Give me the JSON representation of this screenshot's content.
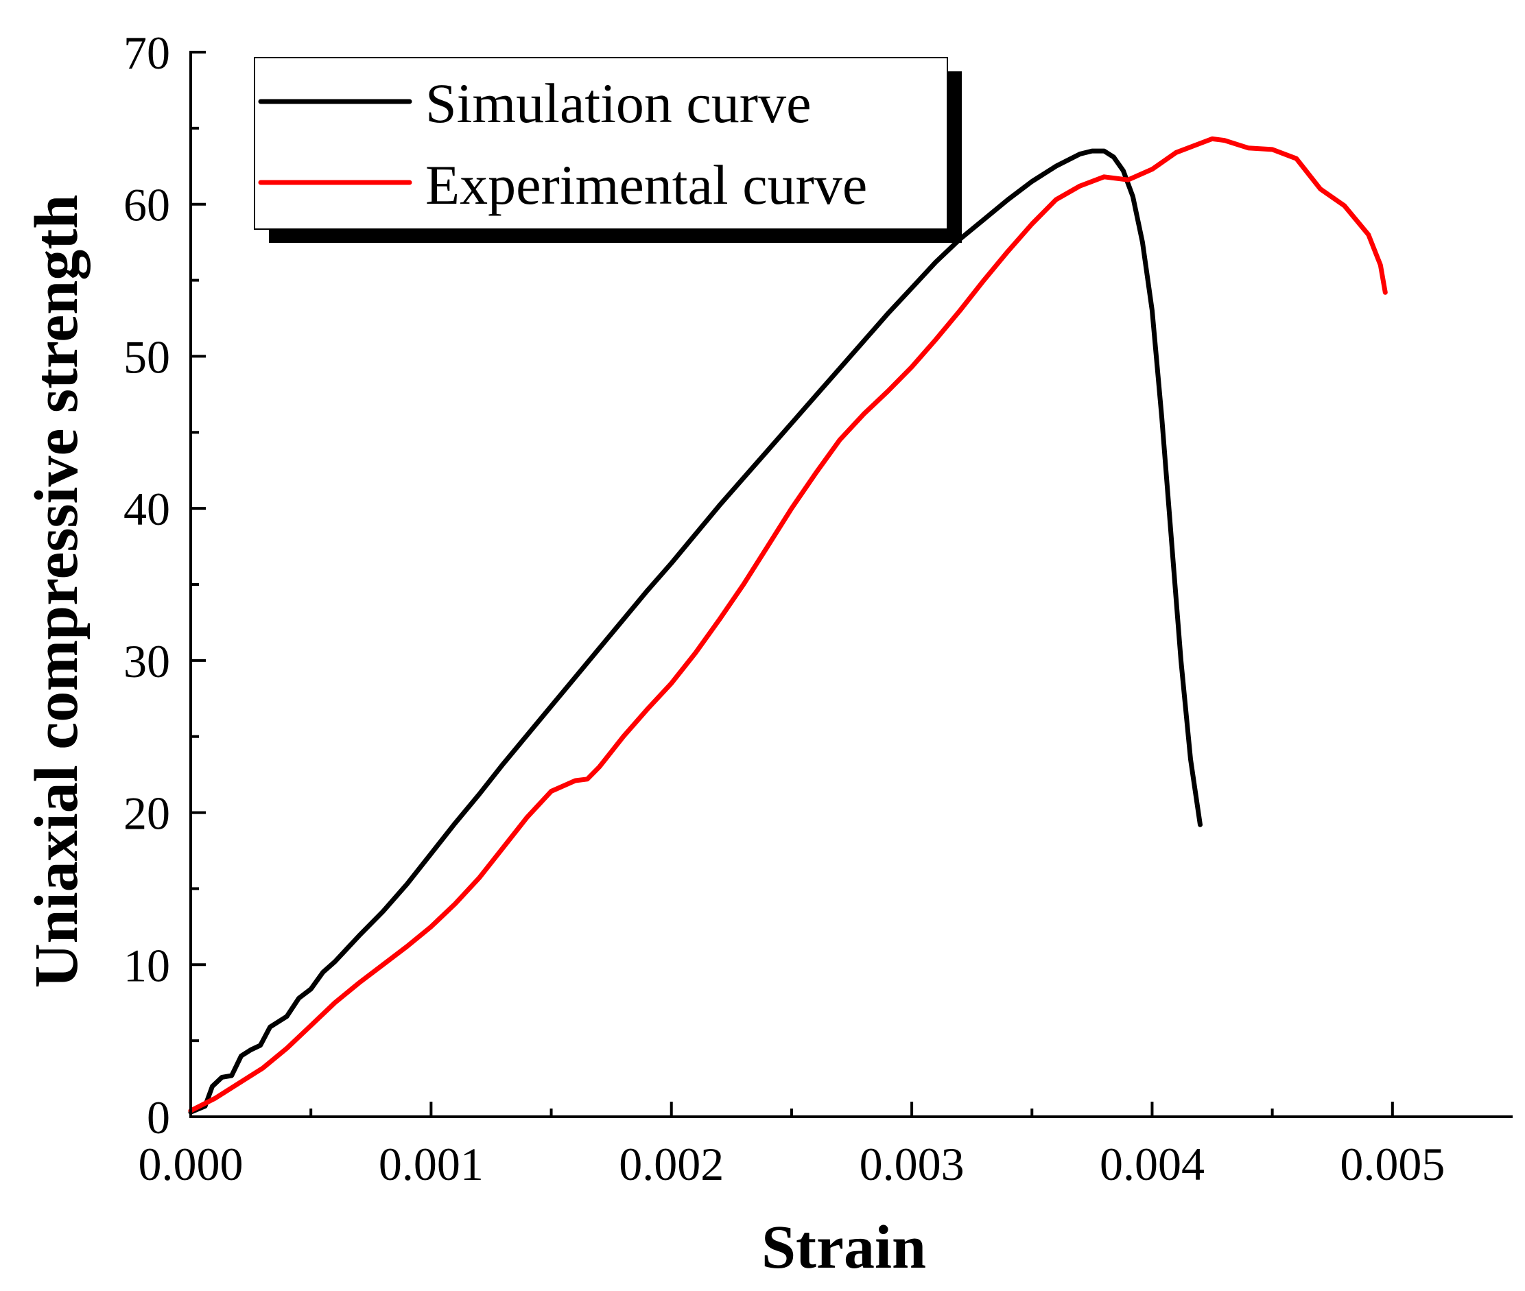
{
  "chart_data": {
    "type": "line",
    "title": "",
    "xlabel": "Strain",
    "ylabel": "Uniaxial compressive strength",
    "xlim": [
      0,
      0.0055
    ],
    "ylim": [
      0,
      70
    ],
    "xticks": [
      0.0,
      0.001,
      0.002,
      0.003,
      0.004,
      0.005
    ],
    "xtick_labels": [
      "0.000",
      "0.001",
      "0.002",
      "0.003",
      "0.004",
      "0.005"
    ],
    "yticks": [
      0,
      10,
      20,
      30,
      40,
      50,
      60,
      70
    ],
    "ytick_labels": [
      "0",
      "10",
      "20",
      "30",
      "40",
      "50",
      "60",
      "70"
    ],
    "grid": false,
    "legend_position": "top-left",
    "series": [
      {
        "name": "Simulation curve",
        "color": "#000000",
        "points": [
          [
            0.0,
            0.3
          ],
          [
            6e-05,
            0.7
          ],
          [
            9e-05,
            2.0
          ],
          [
            0.00013,
            2.6
          ],
          [
            0.00017,
            2.7
          ],
          [
            0.00021,
            4.0
          ],
          [
            0.00025,
            4.4
          ],
          [
            0.00029,
            4.7
          ],
          [
            0.00033,
            5.9
          ],
          [
            0.00037,
            6.3
          ],
          [
            0.0004,
            6.6
          ],
          [
            0.00045,
            7.8
          ],
          [
            0.0005,
            8.4
          ],
          [
            0.00055,
            9.5
          ],
          [
            0.0006,
            10.2
          ],
          [
            0.0007,
            11.9
          ],
          [
            0.0008,
            13.5
          ],
          [
            0.0009,
            15.3
          ],
          [
            0.001,
            17.3
          ],
          [
            0.0011,
            19.3
          ],
          [
            0.0012,
            21.2
          ],
          [
            0.0013,
            23.2
          ],
          [
            0.0014,
            25.1
          ],
          [
            0.0015,
            27.0
          ],
          [
            0.0016,
            28.9
          ],
          [
            0.0017,
            30.8
          ],
          [
            0.0018,
            32.7
          ],
          [
            0.0019,
            34.6
          ],
          [
            0.002,
            36.4
          ],
          [
            0.0021,
            38.3
          ],
          [
            0.0022,
            40.2
          ],
          [
            0.0023,
            42.0
          ],
          [
            0.0024,
            43.8
          ],
          [
            0.0025,
            45.6
          ],
          [
            0.0026,
            47.4
          ],
          [
            0.0027,
            49.2
          ],
          [
            0.0028,
            51.0
          ],
          [
            0.0029,
            52.8
          ],
          [
            0.003,
            54.5
          ],
          [
            0.0031,
            56.2
          ],
          [
            0.0032,
            57.7
          ],
          [
            0.0033,
            59.0
          ],
          [
            0.0034,
            60.3
          ],
          [
            0.0035,
            61.5
          ],
          [
            0.0036,
            62.5
          ],
          [
            0.00365,
            62.9
          ],
          [
            0.0037,
            63.3
          ],
          [
            0.00375,
            63.5
          ],
          [
            0.0038,
            63.5
          ],
          [
            0.00384,
            63.1
          ],
          [
            0.00388,
            62.2
          ],
          [
            0.00392,
            60.5
          ],
          [
            0.00396,
            57.5
          ],
          [
            0.004,
            53.0
          ],
          [
            0.00404,
            46.0
          ],
          [
            0.00408,
            38.0
          ],
          [
            0.00412,
            30.0
          ],
          [
            0.00416,
            23.5
          ],
          [
            0.0042,
            19.2
          ]
        ]
      },
      {
        "name": "Experimental curve",
        "color": "#ff0000",
        "points": [
          [
            0.0,
            0.4
          ],
          [
            0.0001,
            1.2
          ],
          [
            0.0002,
            2.2
          ],
          [
            0.0003,
            3.2
          ],
          [
            0.0004,
            4.5
          ],
          [
            0.0005,
            6.0
          ],
          [
            0.0006,
            7.5
          ],
          [
            0.0007,
            8.8
          ],
          [
            0.0008,
            10.0
          ],
          [
            0.0009,
            11.2
          ],
          [
            0.001,
            12.5
          ],
          [
            0.0011,
            14.0
          ],
          [
            0.0012,
            15.7
          ],
          [
            0.0013,
            17.7
          ],
          [
            0.0014,
            19.7
          ],
          [
            0.0015,
            21.4
          ],
          [
            0.0016,
            22.1
          ],
          [
            0.00165,
            22.2
          ],
          [
            0.0017,
            23.0
          ],
          [
            0.0018,
            25.0
          ],
          [
            0.0019,
            26.8
          ],
          [
            0.002,
            28.5
          ],
          [
            0.0021,
            30.5
          ],
          [
            0.0022,
            32.7
          ],
          [
            0.0023,
            35.0
          ],
          [
            0.0024,
            37.5
          ],
          [
            0.0025,
            40.0
          ],
          [
            0.0026,
            42.3
          ],
          [
            0.0027,
            44.5
          ],
          [
            0.0028,
            46.2
          ],
          [
            0.0029,
            47.7
          ],
          [
            0.003,
            49.3
          ],
          [
            0.0031,
            51.1
          ],
          [
            0.0032,
            53.0
          ],
          [
            0.0033,
            55.0
          ],
          [
            0.0034,
            56.9
          ],
          [
            0.0035,
            58.7
          ],
          [
            0.0036,
            60.3
          ],
          [
            0.0037,
            61.2
          ],
          [
            0.0038,
            61.8
          ],
          [
            0.0039,
            61.6
          ],
          [
            0.004,
            62.3
          ],
          [
            0.0041,
            63.4
          ],
          [
            0.0042,
            64.0
          ],
          [
            0.00425,
            64.3
          ],
          [
            0.0043,
            64.2
          ],
          [
            0.0044,
            63.7
          ],
          [
            0.0045,
            63.6
          ],
          [
            0.0046,
            63.0
          ],
          [
            0.0047,
            61.0
          ],
          [
            0.0048,
            59.9
          ],
          [
            0.0049,
            58.0
          ],
          [
            0.00495,
            56.0
          ],
          [
            0.00497,
            54.2
          ]
        ]
      }
    ]
  }
}
